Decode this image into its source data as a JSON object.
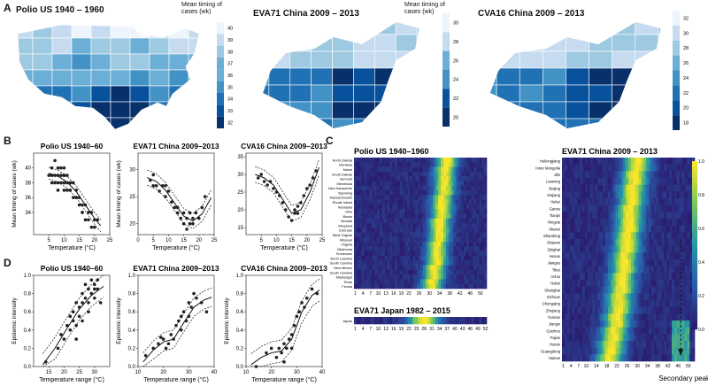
{
  "panel_labels": {
    "a": "A",
    "b": "B",
    "c": "C",
    "d": "D"
  },
  "panel_a": {
    "map1": {
      "title": "Polio US 1940 – 1960",
      "legend_title": "Mean timing of\ncases (wk)",
      "ticks": [
        "40",
        "39",
        "38",
        "37",
        "36",
        "35",
        "34",
        "33",
        "32"
      ]
    },
    "map2": {
      "title": "EVA71 China 2009 – 2013",
      "legend_title": "Mean timing of\ncases (wk)",
      "ticks": [
        "30",
        "28",
        "26",
        "24",
        "22",
        "20"
      ]
    },
    "map3": {
      "title": "CVA16 China 2009 – 2013",
      "ticks": [
        "32",
        "30",
        "28",
        "26",
        "24",
        "22",
        "20",
        "18"
      ]
    },
    "colors": [
      "#eef4fb",
      "#c6dbef",
      "#9ecae1",
      "#6baed6",
      "#4292c6",
      "#2171b5",
      "#08519c",
      "#08306b"
    ]
  },
  "chart_data": [
    {
      "type": "scatter",
      "id": "b1",
      "title": "Polio US 1940–60",
      "xlabel": "Temperature (°C)",
      "ylabel": "Mean timing of cases (wk)",
      "xlim": [
        0,
        25
      ],
      "ylim": [
        31,
        42
      ],
      "xticks": [
        "5",
        "10",
        "15",
        "20",
        "25"
      ],
      "yticks": [
        "34",
        "36",
        "38",
        "40"
      ],
      "x": [
        5,
        6,
        6,
        7,
        7,
        7,
        8,
        8,
        8,
        9,
        9,
        9,
        10,
        10,
        10,
        10,
        11,
        11,
        11,
        12,
        12,
        13,
        13,
        14,
        14,
        15,
        15,
        16,
        16,
        17,
        17,
        18,
        18,
        19,
        19,
        20,
        20,
        21,
        6,
        8,
        10,
        12,
        14,
        16
      ],
      "y": [
        39,
        40,
        38,
        41,
        39,
        38,
        40,
        39,
        37,
        39,
        38,
        40,
        39,
        38,
        37,
        40,
        38,
        37,
        39,
        37,
        38,
        36,
        38,
        36,
        37,
        35,
        36,
        35,
        34,
        35,
        33,
        34,
        33,
        32,
        34,
        33,
        32,
        33,
        39,
        38,
        39,
        38,
        36,
        34
      ],
      "fit_x": [
        5,
        8,
        11,
        14,
        17,
        20,
        22
      ],
      "fit_y": [
        39.3,
        38.9,
        38.1,
        36.8,
        35.0,
        33.2,
        32.2
      ],
      "ci_width": 0.8
    },
    {
      "type": "scatter",
      "id": "b2",
      "title": "EVA71 China 2009–2013",
      "xlabel": "Temperature (°C)",
      "ylabel": "Mean timing of cases (wk)",
      "xlim": [
        0,
        25
      ],
      "ylim": [
        18,
        33
      ],
      "xticks": [
        "0",
        "5",
        "10",
        "15",
        "20",
        "25"
      ],
      "yticks": [
        "20",
        "25",
        "30"
      ],
      "x": [
        4,
        5,
        6,
        7,
        8,
        9,
        10,
        11,
        12,
        13,
        14,
        15,
        15,
        16,
        16,
        17,
        17,
        18,
        18,
        19,
        20,
        21,
        22,
        5,
        9,
        13
      ],
      "y": [
        28,
        29,
        27,
        26,
        27,
        25,
        26,
        24,
        23,
        22,
        21,
        20,
        22,
        21,
        19,
        20,
        22,
        20,
        21,
        22,
        21,
        23,
        25,
        27,
        27,
        23
      ],
      "fit_x": [
        3,
        6,
        9,
        12,
        15,
        18,
        21,
        24
      ],
      "fit_y": [
        28.5,
        27.8,
        26.2,
        23.8,
        21.4,
        20.5,
        21.8,
        24.8
      ],
      "ci_width": 1.4
    },
    {
      "type": "scatter",
      "id": "b3",
      "title": "CVA16 China 2009–2013",
      "xlabel": "Temperature (°C)",
      "ylabel": "",
      "xlim": [
        0,
        25
      ],
      "ylim": [
        13,
        36
      ],
      "xticks": [
        "5",
        "10",
        "15",
        "20",
        "25"
      ],
      "yticks": [
        "15",
        "20",
        "25",
        "30",
        "35"
      ],
      "x": [
        4,
        5,
        6,
        7,
        8,
        9,
        10,
        11,
        12,
        13,
        14,
        15,
        16,
        16,
        17,
        17,
        18,
        19,
        20,
        21,
        22,
        23
      ],
      "y": [
        29,
        30,
        28,
        27,
        28,
        26,
        25,
        24,
        22,
        20,
        18,
        17,
        19,
        20,
        21,
        19,
        22,
        24,
        26,
        27,
        29,
        31
      ],
      "fit_x": [
        3,
        6,
        9,
        12,
        15,
        18,
        21,
        24
      ],
      "fit_y": [
        30,
        29,
        27,
        23,
        19,
        20,
        25,
        32
      ],
      "ci_width": 2.2
    },
    {
      "type": "scatter",
      "id": "d1",
      "title": "Polio US 1940–60",
      "xlabel": "Temperature range (°C)",
      "ylabel": "Epidemic intensity",
      "xlim": [
        10,
        35
      ],
      "ylim": [
        0,
        1
      ],
      "xticks": [
        "15",
        "20",
        "25",
        "30"
      ],
      "yticks": [
        "0.0",
        "0.2",
        "0.4",
        "0.6",
        "0.8",
        "1.0"
      ],
      "x": [
        14,
        18,
        19,
        20,
        21,
        22,
        22,
        23,
        23,
        24,
        24,
        25,
        25,
        26,
        26,
        27,
        27,
        28,
        28,
        29,
        29,
        30,
        30,
        31,
        31,
        32,
        24,
        26,
        28,
        30
      ],
      "y": [
        0.05,
        0.2,
        0.35,
        0.3,
        0.45,
        0.4,
        0.55,
        0.5,
        0.6,
        0.45,
        0.7,
        0.65,
        0.55,
        0.8,
        0.7,
        0.75,
        0.9,
        0.85,
        0.7,
        0.95,
        0.8,
        0.9,
        0.75,
        0.85,
        0.95,
        0.7,
        0.3,
        0.5,
        0.6,
        0.85
      ],
      "fit_x": [
        13,
        17,
        21,
        25,
        29,
        33
      ],
      "fit_y": [
        0.02,
        0.2,
        0.42,
        0.63,
        0.78,
        0.88
      ],
      "ci_width": 0.12
    },
    {
      "type": "scatter",
      "id": "d2",
      "title": "EVA71 China 2009–2013",
      "xlabel": "Temperature range (°C)",
      "ylabel": "Epidemic intensity",
      "xlim": [
        10,
        40
      ],
      "ylim": [
        0,
        1
      ],
      "xticks": [
        "10",
        "20",
        "30",
        "40"
      ],
      "yticks": [
        "0.0",
        "0.2",
        "0.4",
        "0.6",
        "0.8",
        "1.0"
      ],
      "x": [
        13,
        16,
        18,
        20,
        21,
        22,
        23,
        24,
        25,
        26,
        27,
        28,
        29,
        30,
        31,
        32,
        33,
        35,
        37,
        19,
        27,
        30
      ],
      "y": [
        0.12,
        0.2,
        0.25,
        0.3,
        0.2,
        0.25,
        0.35,
        0.3,
        0.45,
        0.5,
        0.55,
        0.6,
        0.5,
        0.7,
        0.65,
        0.8,
        0.75,
        0.7,
        0.6,
        0.32,
        0.4,
        0.55
      ],
      "fit_x": [
        12,
        16,
        20,
        24,
        28,
        32,
        36,
        39
      ],
      "fit_y": [
        0.05,
        0.18,
        0.27,
        0.3,
        0.48,
        0.65,
        0.73,
        0.76
      ],
      "ci_width": 0.1
    },
    {
      "type": "scatter",
      "id": "d3",
      "title": "CVA16 China 2009–2013",
      "xlabel": "Temperature range (°C)",
      "ylabel": "Epidemic intensity",
      "xlim": [
        10,
        40
      ],
      "ylim": [
        0,
        1
      ],
      "xticks": [
        "10",
        "20",
        "30",
        "40"
      ],
      "yticks": [
        "0.0",
        "0.2",
        "0.4",
        "0.6",
        "0.8",
        "1.0"
      ],
      "x": [
        14,
        18,
        20,
        22,
        23,
        24,
        25,
        26,
        27,
        28,
        29,
        30,
        31,
        32,
        33,
        34,
        36,
        38,
        25,
        28
      ],
      "y": [
        0.0,
        0.15,
        0.2,
        0.1,
        0.2,
        0.15,
        0.25,
        0.2,
        0.3,
        0.35,
        0.45,
        0.55,
        0.6,
        0.7,
        0.65,
        0.75,
        0.85,
        0.8,
        0.05,
        0.2
      ],
      "fit_x": [
        12,
        16,
        20,
        24,
        28,
        32,
        36,
        39
      ],
      "fit_y": [
        0.02,
        0.1,
        0.15,
        0.17,
        0.3,
        0.6,
        0.78,
        0.84
      ],
      "ci_width": 0.12
    },
    {
      "type": "heatmap",
      "id": "c1",
      "title": "Polio US 1940–1960",
      "rows": [
        "North Dakota",
        "Montana",
        "Maine",
        "South Dakota",
        "Vermont",
        "Minnesota",
        "New Hampshire",
        "Wyoming",
        "Massachusetts",
        "Rhode Island",
        "Nebraska",
        "Ohio",
        "Illinois",
        "Nevada",
        "Maryland",
        "Colorado",
        "West Virginia",
        "Missouri",
        "Virginia",
        "Oklahoma",
        "Tennessee",
        "North Carolina",
        "South Carolina",
        "New Mexico",
        "South Carolina",
        "Mississippi",
        "Texas",
        "Florida"
      ],
      "xticks": [
        "1",
        "4",
        "7",
        "10",
        "13",
        "16",
        "19",
        "22",
        "26",
        "30",
        "34",
        "38",
        "42",
        "46",
        "50"
      ],
      "peak_weeks": [
        37,
        37,
        36,
        36,
        36,
        36,
        36,
        36,
        35,
        35,
        35,
        35,
        35,
        34,
        34,
        34,
        34,
        34,
        33,
        33,
        33,
        33,
        33,
        32,
        32,
        32,
        31,
        31
      ],
      "width": 4
    },
    {
      "type": "heatmap",
      "id": "c2",
      "title": "EVA71 China 2009 – 2013",
      "rows": [
        "Heilongjiang",
        "Inner Mongolia",
        "Jilin",
        "Liaoning",
        "Beijing",
        "Xinjiang",
        "Hebei",
        "Gansu",
        "Tianjin",
        "Ningxia",
        "Shanxi",
        "Shandong",
        "Shaanxi",
        "Qinghai",
        "Henan",
        "Jiangsu",
        "Tibet",
        "Anhui",
        "Hubei",
        "Shanghai",
        "Sichuan",
        "Chongqing",
        "Zhejiang",
        "Yunnan",
        "Jiangxi",
        "Guizhou",
        "Fujian",
        "Hunan",
        "Guangdong",
        "Hainan"
      ],
      "xticks": [
        "1",
        "4",
        "7",
        "10",
        "14",
        "18",
        "22",
        "26",
        "30",
        "34",
        "38",
        "42",
        "46",
        "50"
      ],
      "peak_weeks": [
        30,
        30,
        29,
        29,
        28,
        28,
        28,
        27,
        27,
        27,
        27,
        26,
        26,
        26,
        25,
        25,
        25,
        24,
        24,
        24,
        23,
        23,
        23,
        22,
        22,
        21,
        21,
        20,
        20,
        19
      ],
      "width": 5,
      "colorbar_ticks": [
        "1.0",
        "0.8",
        "0.6",
        "0.4",
        "0.2",
        "0.0"
      ],
      "annotation": "Secondary peak"
    },
    {
      "type": "heatmap",
      "id": "c3",
      "title": "EVA71 Japan 1982 – 2015",
      "rows": [
        "Japan"
      ],
      "xticks": [
        "1",
        "4",
        "7",
        "10",
        "13",
        "16",
        "19",
        "22",
        "25",
        "28",
        "31",
        "34",
        "37",
        "40",
        "43",
        "46",
        "49",
        "52"
      ],
      "peak_weeks": [
        28
      ],
      "width": 6
    }
  ]
}
